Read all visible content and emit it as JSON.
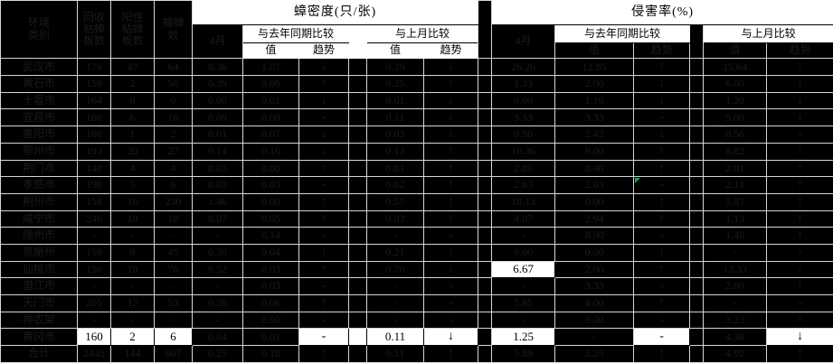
{
  "header": {
    "col_city": "环境\n类别",
    "col_boards": "回收\n粘蟑\n板数",
    "col_positive": "阳性\n粘蟑\n板数",
    "col_caught": "捕蟑\n数",
    "density_title": "蟑密度(只/张)",
    "infest_title": "侵害率(%)",
    "month": "4月",
    "vs_last_year": "与去年同期比较",
    "vs_last_month": "与上月比较",
    "value": "值",
    "trend": "趋势"
  },
  "colors": {
    "accent_white": "#ffffff",
    "grid_line": "#d6d6d6",
    "hidden_text": "#1a1a1a",
    "error_corner_green": "#00b050"
  },
  "rows": [
    {
      "name": "武汉市",
      "boards": "179",
      "positive": "47",
      "caught": "64",
      "d_month": "0.36",
      "d_yr_val": "1.07",
      "d_yr_tr": "↓",
      "d_mo_val": "0.39",
      "d_mo_tr": "↓",
      "i_month": "26.26",
      "i_yr_val": "12.85",
      "i_yr_tr": "↑",
      "i_mo_val": "15.64",
      "i_mo_tr": "↑"
    },
    {
      "name": "黄石市",
      "boards": "150",
      "positive": "2",
      "caught": "58",
      "d_month": "0.39",
      "d_yr_val": "0.06",
      "d_yr_tr": "↑",
      "d_mo_val": "0.25",
      "d_mo_tr": "↑",
      "i_month": "1.33",
      "i_yr_val": "2.00",
      "i_yr_tr": "↓",
      "i_mo_val": "6.00",
      "i_mo_tr": "↓"
    },
    {
      "name": "十堰市",
      "boards": "164",
      "positive": "0",
      "caught": "0",
      "d_month": "0.00",
      "d_yr_val": "0.01",
      "d_yr_tr": "↓",
      "d_mo_val": "0.01",
      "d_mo_tr": "↓",
      "i_month": "0.00",
      "i_yr_val": "1.16",
      "i_yr_tr": "↓",
      "i_mo_val": "1.20",
      "i_mo_tr": "↓"
    },
    {
      "name": "宜昌市",
      "boards": "180",
      "positive": "6",
      "caught": "16",
      "d_month": "0.09",
      "d_yr_val": "0.09",
      "d_yr_tr": "-",
      "d_mo_val": "0.11",
      "d_mo_tr": "↓",
      "i_month": "3.33",
      "i_yr_val": "3.33",
      "i_yr_tr": "-",
      "i_mo_val": "5.00",
      "i_mo_tr": "↓"
    },
    {
      "name": "襄阳市",
      "boards": "180",
      "positive": "1",
      "caught": "2",
      "d_month": "0.01",
      "d_yr_val": "0.07",
      "d_yr_tr": "↓",
      "d_mo_val": "0.03",
      "d_mo_tr": "↓",
      "i_month": "0.56",
      "i_yr_val": "2.42",
      "i_yr_tr": "↓",
      "i_mo_val": "0.56",
      "i_mo_tr": "-"
    },
    {
      "name": "鄂州市",
      "boards": "193",
      "positive": "20",
      "caught": "27",
      "d_month": "0.14",
      "d_yr_val": "0.16",
      "d_yr_tr": "↓",
      "d_mo_val": "0.13",
      "d_mo_tr": "↑",
      "i_month": "10.36",
      "i_yr_val": "9.00",
      "i_yr_tr": "↑",
      "i_mo_val": "8.82",
      "i_mo_tr": "↑"
    },
    {
      "name": "荆门市",
      "boards": "140",
      "positive": "4",
      "caught": "4",
      "d_month": "0.03",
      "d_yr_val": "0.00",
      "d_yr_tr": "↑",
      "d_mo_val": "0.01",
      "d_mo_tr": "↑",
      "i_month": "2.86",
      "i_yr_val": "0.00",
      "i_yr_tr": "↑",
      "i_mo_val": "2.01",
      "i_mo_tr": "↑"
    },
    {
      "name": "孝感市",
      "boards": "190",
      "positive": "5",
      "caught": "6",
      "d_month": "0.03",
      "d_yr_val": "0.03",
      "d_yr_tr": "-",
      "d_mo_val": "0.02",
      "d_mo_tr": "↑",
      "i_month": "2.63",
      "i_yr_val": "2.63",
      "i_yr_tr": "-",
      "i_mo_val": "2.11",
      "i_mo_tr": "↑",
      "green": "i_yr_tr"
    },
    {
      "name": "荆州市",
      "boards": "158",
      "positive": "16",
      "caught": "230",
      "d_month": "1.46",
      "d_yr_val": "0.00",
      "d_yr_tr": "↑",
      "d_mo_val": "0.57",
      "d_mo_tr": "↑",
      "i_month": "10.13",
      "i_yr_val": "0.00",
      "i_yr_tr": "↑",
      "i_mo_val": "5.87",
      "i_mo_tr": "↑"
    },
    {
      "name": "咸宁市",
      "boards": "246",
      "positive": "10",
      "caught": "18",
      "d_month": "0.07",
      "d_yr_val": "0.05",
      "d_yr_tr": "↑",
      "d_mo_val": "0.03",
      "d_mo_tr": "↑",
      "i_month": "4.07",
      "i_yr_val": "2.94",
      "i_yr_tr": "↑",
      "i_mo_val": "1.13",
      "i_mo_tr": "↑"
    },
    {
      "name": "随州市",
      "boards": "-",
      "positive": "-",
      "caught": "-",
      "d_month": "-",
      "d_yr_val": "0.14",
      "d_yr_tr": "-",
      "d_mo_val": "-",
      "d_mo_tr": "-",
      "i_month": "-",
      "i_yr_val": "8.00",
      "i_yr_tr": "-",
      "i_mo_val": "1.40",
      "i_mo_tr": "↑"
    },
    {
      "name": "恩施州",
      "boards": "150",
      "positive": "9",
      "caught": "45",
      "d_month": "0.30",
      "d_yr_val": "0.04",
      "d_yr_tr": "↑",
      "d_mo_val": "0.21",
      "d_mo_tr": "↑",
      "i_month": "6.00",
      "i_yr_val": "0.00",
      "i_yr_tr": "↑",
      "i_mo_val": "-",
      "i_mo_tr": "-"
    },
    {
      "name": "仙桃市",
      "boards": "150",
      "positive": "10",
      "caught": "78",
      "d_month": "0.52",
      "d_yr_val": "0.03",
      "d_yr_tr": "↑",
      "d_mo_val": "0.70",
      "d_mo_tr": "↓",
      "i_month": "6.67",
      "i_yr_val": "2.00",
      "i_yr_tr": "↑",
      "i_mo_val": "13.33",
      "i_mo_tr": "↓",
      "white": [
        "i_month"
      ]
    },
    {
      "name": "潜江市",
      "boards": "-",
      "positive": "-",
      "caught": "-",
      "d_month": "-",
      "d_yr_val": "0.03",
      "d_yr_tr": "-",
      "d_mo_val": "-",
      "d_mo_tr": "-",
      "i_month": "-",
      "i_yr_val": "3.33",
      "i_yr_tr": "-",
      "i_mo_val": "2.00",
      "i_mo_tr": "↑"
    },
    {
      "name": "天门市",
      "boards": "205",
      "positive": "12",
      "caught": "53",
      "d_month": "0.26",
      "d_yr_val": "0.06",
      "d_yr_tr": "↑",
      "d_mo_val": "-",
      "d_mo_tr": "-",
      "i_month": "5.85",
      "i_yr_val": "4.00",
      "i_yr_tr": "↑",
      "i_mo_val": "-",
      "i_mo_tr": "-"
    },
    {
      "name": "神农架",
      "boards": "-",
      "positive": "-",
      "caught": "-",
      "d_month": "-",
      "d_yr_val": "0.00",
      "d_yr_tr": "-",
      "d_mo_val": "-",
      "d_mo_tr": "-",
      "i_month": "-",
      "i_yr_val": "0.00",
      "i_yr_tr": "-",
      "i_mo_val": "3.23",
      "i_mo_tr": "↑"
    },
    {
      "name": "黄冈市",
      "boards": "160",
      "positive": "2",
      "caught": "6",
      "d_month": "0.04",
      "d_yr_val": "0.01",
      "d_yr_tr": "-",
      "d_mo_val": "0.11",
      "d_mo_tr": "↓",
      "i_month": "1.25",
      "i_yr_val": "-",
      "i_yr_tr": "-",
      "i_mo_val": "4.38",
      "i_mo_tr": "↓",
      "white": [
        "boards",
        "positive",
        "caught",
        "d_yr_tr",
        "gapL",
        "d_mo_val",
        "d_mo_tr",
        "i_month",
        "i_yr_tr",
        "i_mo_tr"
      ]
    },
    {
      "name": "合计",
      "boards": "2445",
      "positive": "144",
      "caught": "607",
      "d_month": "0.25",
      "d_yr_val": "0.18",
      "d_yr_tr": "↑",
      "d_mo_val": "0.11",
      "d_mo_tr": "↑",
      "i_month": "5.89",
      "i_yr_val": "5.25",
      "i_yr_tr": "↑",
      "i_mo_val": "4.92",
      "i_mo_tr": "↑"
    }
  ]
}
